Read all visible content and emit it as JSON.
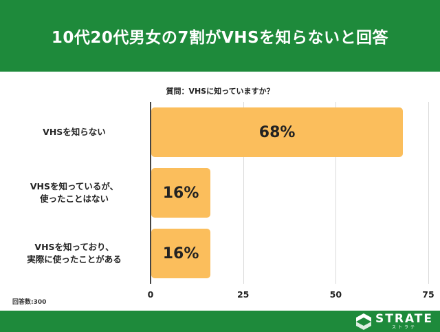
{
  "header": {
    "title": "10代20代男女の7割がVHSを知らないと回答"
  },
  "chart_data": {
    "type": "bar",
    "orientation": "horizontal",
    "title": "質問：VHSに知っていますか？",
    "categories": [
      "VHSを知らない",
      "VHSを知っているが、\n使ったことはない",
      "VHSを知っており、\n実際に使ったことがある"
    ],
    "values": [
      68,
      16,
      16
    ],
    "value_labels": [
      "68%",
      "16%",
      "16%"
    ],
    "xlim": [
      0,
      75
    ],
    "xticks": [
      "0",
      "25",
      "50",
      "75"
    ],
    "grid": true,
    "bar_color": "#fbbe5c"
  },
  "footnote": {
    "respondents": "回答数:300"
  },
  "footer": {
    "brand_name": "STRATE",
    "brand_sub": "ストラテ",
    "color": "#1e8a3b"
  }
}
